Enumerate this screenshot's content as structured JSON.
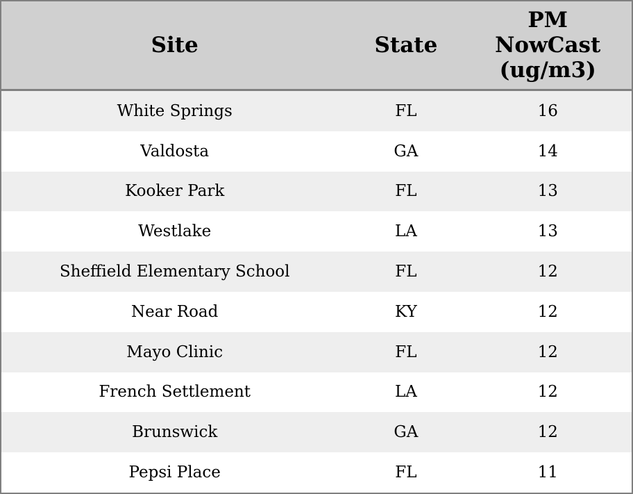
{
  "chart_data": {
    "type": "table",
    "title": "",
    "columns": [
      "Site",
      "State",
      "PM NowCast (ug/m3)"
    ],
    "rows": [
      {
        "site": "White Springs",
        "state": "FL",
        "pm_nowcast": 16
      },
      {
        "site": "Valdosta",
        "state": "GA",
        "pm_nowcast": 14
      },
      {
        "site": "Kooker Park",
        "state": "FL",
        "pm_nowcast": 13
      },
      {
        "site": "Westlake",
        "state": "LA",
        "pm_nowcast": 13
      },
      {
        "site": "Sheffield Elementary School",
        "state": "FL",
        "pm_nowcast": 12
      },
      {
        "site": "Near Road",
        "state": "KY",
        "pm_nowcast": 12
      },
      {
        "site": "Mayo Clinic",
        "state": "FL",
        "pm_nowcast": 12
      },
      {
        "site": "French Settlement",
        "state": "LA",
        "pm_nowcast": 12
      },
      {
        "site": "Brunswick",
        "state": "GA",
        "pm_nowcast": 12
      },
      {
        "site": "Pepsi Place",
        "state": "FL",
        "pm_nowcast": 11
      }
    ]
  },
  "colors": {
    "header-bg": "#d0d0d0",
    "border": "#808080",
    "row-alt-bg": "#eeeeee",
    "row-bg": "#ffffff",
    "text": "#000000"
  }
}
